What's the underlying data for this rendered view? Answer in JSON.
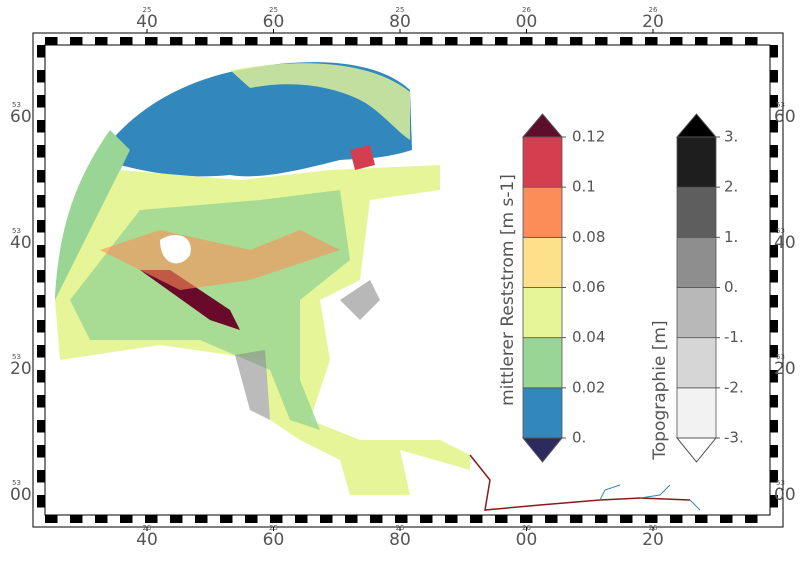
{
  "map": {
    "x_tick_labels": [
      "40",
      "60",
      "80",
      "00",
      "20"
    ],
    "x_tick_sublabels": [
      "25",
      "25",
      "25",
      "26",
      "26"
    ],
    "y_tick_labels": [
      "60",
      "40",
      "20",
      "00"
    ],
    "y_tick_sublabels": [
      "53",
      "53",
      "53",
      "53"
    ]
  },
  "colorbars": [
    {
      "title": "mittlerer Reststrom [m s-1]",
      "ticks": [
        {
          "value": 0,
          "label": "0."
        },
        {
          "value": 0.02,
          "label": "0.02"
        },
        {
          "value": 0.04,
          "label": "0.04"
        },
        {
          "value": 0.06,
          "label": "0.06"
        },
        {
          "value": 0.08,
          "label": "0.08"
        },
        {
          "value": 0.1,
          "label": "0.1"
        },
        {
          "value": 0.12,
          "label": "0.12"
        }
      ],
      "colors": [
        "#3288bd",
        "#99d594",
        "#e6f598",
        "#fee08b",
        "#fc8d59",
        "#d53e4f"
      ],
      "under_color": "#2d2a5e",
      "over_color": "#5e0d2b"
    },
    {
      "title": "Topographie [m]",
      "ticks": [
        {
          "value": -3,
          "label": "-3."
        },
        {
          "value": -2,
          "label": "-2."
        },
        {
          "value": -1,
          "label": "-1."
        },
        {
          "value": 0,
          "label": "0."
        },
        {
          "value": 1,
          "label": "1."
        },
        {
          "value": 2,
          "label": "2."
        },
        {
          "value": 3,
          "label": "3."
        }
      ],
      "colors": [
        "#f2f2f2",
        "#d6d6d6",
        "#b8b8b8",
        "#8e8e8e",
        "#5e5e5e",
        "#1e1e1e"
      ],
      "under_color": "#ffffff",
      "over_color": "#000000"
    }
  ]
}
